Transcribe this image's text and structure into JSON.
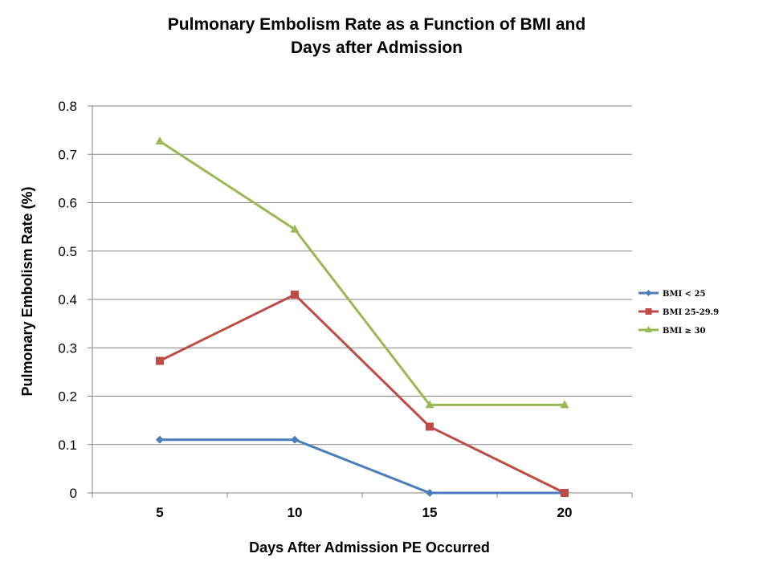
{
  "chart_data": {
    "type": "line",
    "title_lines": [
      "Pulmonary Embolism Rate as a Function of BMI and",
      "Days after Admission"
    ],
    "xlabel": "Days After Admission PE Occurred",
    "ylabel": "Pulmonary Embolism Rate (%)",
    "categories": [
      "5",
      "10",
      "15",
      "20"
    ],
    "ylim": [
      0,
      0.8
    ],
    "yticks": [
      "0",
      "0.1",
      "0.2",
      "0.3",
      "0.4",
      "0.5",
      "0.6",
      "0.7",
      "0.8"
    ],
    "grid": true,
    "legend_position": "right",
    "series": [
      {
        "name": "BMI < 25",
        "color": "#4a7ebb",
        "marker": "diamond",
        "values": [
          0.11,
          0.11,
          0,
          0
        ]
      },
      {
        "name": "BMI 25-29.9",
        "color": "#be4b48",
        "marker": "square",
        "values": [
          0.273,
          0.41,
          0.137,
          0
        ]
      },
      {
        "name": "BMI ≥ 30",
        "color": "#98b954",
        "marker": "triangle",
        "values": [
          0.727,
          0.545,
          0.182,
          0.182
        ]
      }
    ]
  }
}
